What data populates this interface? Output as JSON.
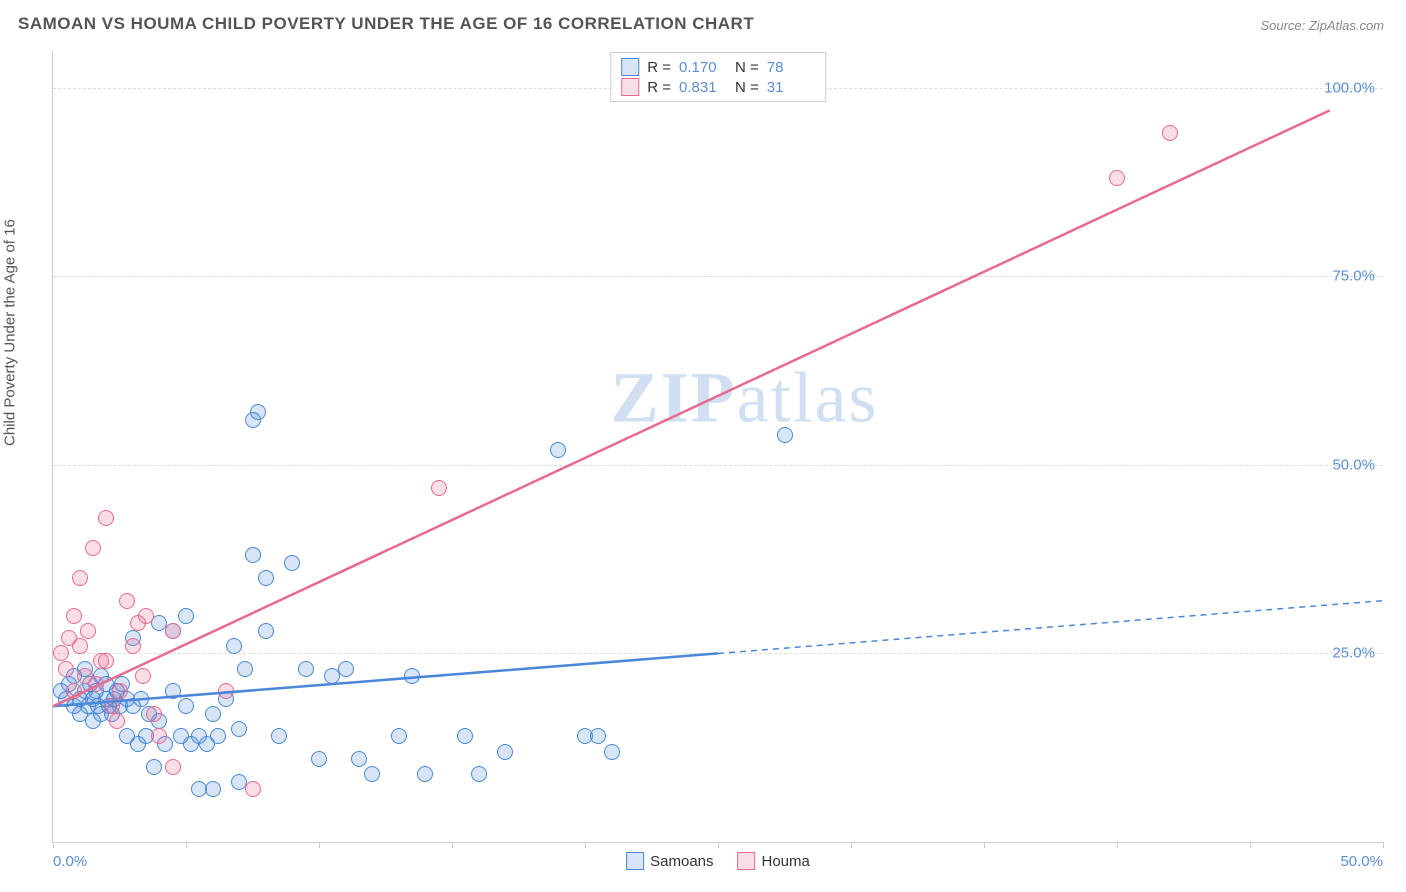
{
  "title": "SAMOAN VS HOUMA CHILD POVERTY UNDER THE AGE OF 16 CORRELATION CHART",
  "source": "Source: ZipAtlas.com",
  "ylabel": "Child Poverty Under the Age of 16",
  "watermark_prefix": "ZIP",
  "watermark_suffix": "atlas",
  "chart": {
    "type": "scatter",
    "background_color": "#ffffff",
    "grid_color": "#dddddd",
    "axis_color": "#cccccc",
    "tick_label_color": "#5b8dd6",
    "xlim": [
      0,
      50
    ],
    "ylim": [
      0,
      105
    ],
    "ytick_values": [
      25,
      50,
      75,
      100
    ],
    "ytick_labels": [
      "25.0%",
      "50.0%",
      "75.0%",
      "100.0%"
    ],
    "xtick_values": [
      0,
      5,
      10,
      15,
      20,
      25,
      30,
      35,
      40,
      45,
      50
    ],
    "xtick_labels_shown": {
      "0": "0.0%",
      "50": "50.0%"
    },
    "marker_radius": 8,
    "marker_border_width": 1.5,
    "marker_fill_opacity": 0.22,
    "line_width": 2.5
  },
  "series": [
    {
      "name": "Samoans",
      "color": "#4a87d8",
      "fill": "rgba(74,135,216,0.22)",
      "R": "0.170",
      "N": "78",
      "trend": {
        "x1": 0,
        "y1": 18,
        "x2": 25,
        "y2": 25,
        "x3": 50,
        "y3": 32,
        "solid_until_x": 25,
        "dash": "6,5"
      },
      "points": [
        [
          0.3,
          20
        ],
        [
          0.5,
          19
        ],
        [
          0.6,
          21
        ],
        [
          0.8,
          22
        ],
        [
          0.8,
          18
        ],
        [
          1.0,
          19
        ],
        [
          1.0,
          17
        ],
        [
          1.2,
          20
        ],
        [
          1.2,
          23
        ],
        [
          1.3,
          18
        ],
        [
          1.4,
          21
        ],
        [
          1.5,
          19
        ],
        [
          1.5,
          16
        ],
        [
          1.6,
          20
        ],
        [
          1.7,
          18
        ],
        [
          1.8,
          22
        ],
        [
          1.8,
          17
        ],
        [
          2.0,
          21
        ],
        [
          2.0,
          19
        ],
        [
          2.1,
          18
        ],
        [
          2.2,
          17
        ],
        [
          2.3,
          19
        ],
        [
          2.4,
          20
        ],
        [
          2.5,
          18
        ],
        [
          2.6,
          21
        ],
        [
          2.8,
          19
        ],
        [
          2.8,
          14
        ],
        [
          3.0,
          27
        ],
        [
          3.0,
          18
        ],
        [
          3.2,
          13
        ],
        [
          3.3,
          19
        ],
        [
          3.5,
          14
        ],
        [
          3.6,
          17
        ],
        [
          3.8,
          10
        ],
        [
          4.0,
          16
        ],
        [
          4.0,
          29
        ],
        [
          4.2,
          13
        ],
        [
          4.5,
          20
        ],
        [
          4.5,
          28
        ],
        [
          4.8,
          14
        ],
        [
          5.0,
          18
        ],
        [
          5.0,
          30
        ],
        [
          5.2,
          13
        ],
        [
          5.5,
          14
        ],
        [
          5.5,
          7
        ],
        [
          5.8,
          13
        ],
        [
          6.0,
          17
        ],
        [
          6.0,
          7
        ],
        [
          6.2,
          14
        ],
        [
          6.5,
          19
        ],
        [
          6.8,
          26
        ],
        [
          7.0,
          15
        ],
        [
          7.0,
          8
        ],
        [
          7.2,
          23
        ],
        [
          7.5,
          38
        ],
        [
          7.5,
          56
        ],
        [
          7.7,
          57
        ],
        [
          8.0,
          35
        ],
        [
          8.0,
          28
        ],
        [
          8.5,
          14
        ],
        [
          9.0,
          37
        ],
        [
          9.5,
          23
        ],
        [
          10.0,
          11
        ],
        [
          10.5,
          22
        ],
        [
          11.0,
          23
        ],
        [
          11.5,
          11
        ],
        [
          12.0,
          9
        ],
        [
          13.0,
          14
        ],
        [
          13.5,
          22
        ],
        [
          14.0,
          9
        ],
        [
          15.5,
          14
        ],
        [
          16.0,
          9
        ],
        [
          17.0,
          12
        ],
        [
          19.0,
          52
        ],
        [
          20.0,
          14
        ],
        [
          20.5,
          14
        ],
        [
          21.0,
          12
        ],
        [
          27.5,
          54
        ]
      ]
    },
    {
      "name": "Houma",
      "color": "#e86a8e",
      "fill": "rgba(232,106,142,0.22)",
      "R": "0.831",
      "N": "31",
      "trend": {
        "x1": 0,
        "y1": 18,
        "x2": 48,
        "y2": 97,
        "solid_until_x": 48
      },
      "points": [
        [
          0.3,
          25
        ],
        [
          0.5,
          23
        ],
        [
          0.6,
          27
        ],
        [
          0.8,
          20
        ],
        [
          0.8,
          30
        ],
        [
          1.0,
          35
        ],
        [
          1.0,
          26
        ],
        [
          1.2,
          22
        ],
        [
          1.3,
          28
        ],
        [
          1.5,
          39
        ],
        [
          1.6,
          21
        ],
        [
          1.8,
          24
        ],
        [
          2.0,
          24
        ],
        [
          2.0,
          43
        ],
        [
          2.2,
          18
        ],
        [
          2.4,
          16
        ],
        [
          2.5,
          20
        ],
        [
          2.8,
          32
        ],
        [
          3.0,
          26
        ],
        [
          3.2,
          29
        ],
        [
          3.4,
          22
        ],
        [
          3.5,
          30
        ],
        [
          3.8,
          17
        ],
        [
          4.0,
          14
        ],
        [
          4.5,
          28
        ],
        [
          4.5,
          10
        ],
        [
          6.5,
          20
        ],
        [
          7.5,
          7
        ],
        [
          14.5,
          47
        ],
        [
          40.0,
          88
        ],
        [
          42.0,
          94
        ]
      ]
    }
  ],
  "stats_labels": {
    "R": "R =",
    "N": "N ="
  },
  "legend_labels": [
    "Samoans",
    "Houma"
  ]
}
